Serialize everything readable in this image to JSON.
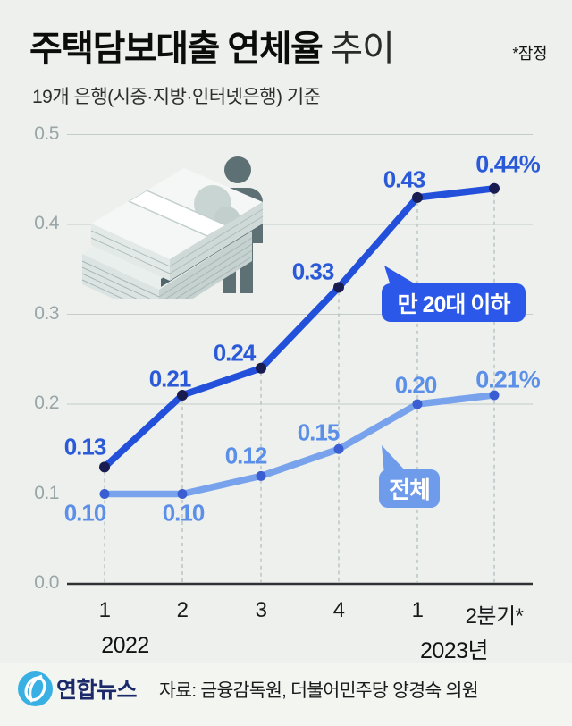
{
  "header": {
    "title_main": "주택담보대출 연체율",
    "title_suffix": "추이",
    "note": "*잠정",
    "subtitle": "19개 은행(시중·지방·인터넷은행) 기준"
  },
  "chart_data": {
    "type": "line",
    "title": "주택담보대출 연체율 추이",
    "unit": "%",
    "x_tick_labels": [
      "1",
      "2",
      "3",
      "4",
      "1",
      "2분기*"
    ],
    "year_labels": [
      "2022",
      "2023년"
    ],
    "y_ticks": [
      "0.0",
      "0.1",
      "0.2",
      "0.3",
      "0.4",
      "0.5"
    ],
    "ylim": [
      0.0,
      0.5
    ],
    "grid": true,
    "legend_position": "inline-balloons",
    "series": [
      {
        "name": "만 20대 이하",
        "values": [
          0.13,
          0.21,
          0.24,
          0.33,
          0.43,
          0.44
        ],
        "point_labels": [
          "0.13",
          "0.21",
          "0.24",
          "0.33",
          "0.43",
          "0.44%"
        ],
        "line_color": "#2350da",
        "marker_color": "#181c50",
        "label_color": "#2b5ad8",
        "badge_color": "#2b58e8"
      },
      {
        "name": "전체",
        "values": [
          0.1,
          0.1,
          0.12,
          0.15,
          0.2,
          0.21
        ],
        "point_labels": [
          "0.10",
          "0.10",
          "0.12",
          "0.15",
          "0.20",
          "0.21%"
        ],
        "line_color": "#78a3ec",
        "marker_color": "#3a5ed2",
        "label_color": "#5c90e8",
        "badge_color": "#6f9cea"
      }
    ]
  },
  "footer": {
    "brand": "연합뉴스",
    "source": "자료: 금융감독원, 더불어민주당 양경숙 의원"
  }
}
